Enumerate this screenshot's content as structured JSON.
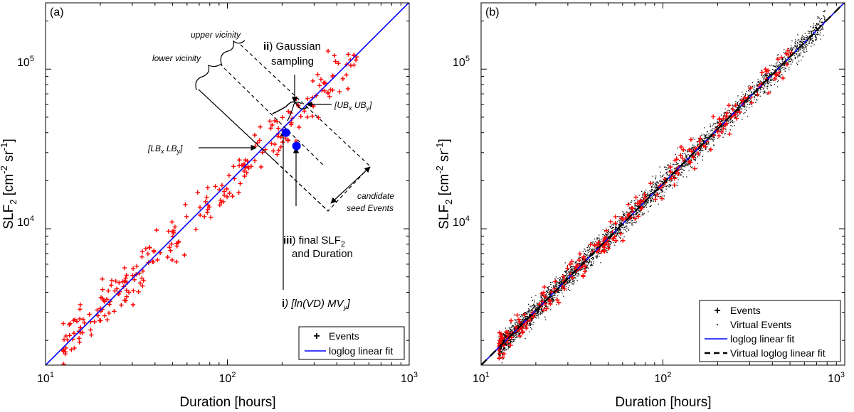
{
  "chart_data": [
    {
      "type": "scatter",
      "panel_label": "(a)",
      "xlabel": "Duration [hours]",
      "ylabel_parts": {
        "pre": "SLF",
        "sub": "2",
        "mid": " [cm",
        "sup1": "-2",
        "mid2": " sr",
        "sup2": "-1",
        "post": "]"
      },
      "xscale": "log",
      "yscale": "log",
      "xlim": [
        10,
        1000
      ],
      "ylim": [
        1400,
        260000
      ],
      "xticks": [
        {
          "base": "10",
          "exp": "1",
          "value": 10
        },
        {
          "base": "10",
          "exp": "2",
          "value": 100
        },
        {
          "base": "10",
          "exp": "3",
          "value": 1000
        }
      ],
      "yticks": [
        {
          "base": "10",
          "exp": "4",
          "value": 10000
        },
        {
          "base": "10",
          "exp": "5",
          "value": 100000
        }
      ],
      "grid": false,
      "legend": {
        "position": "bottom-right",
        "entries": [
          {
            "label": "Events",
            "marker": "plus",
            "color": "#ff0000"
          },
          {
            "label": "loglog linear fit",
            "marker": "line",
            "color": "#0000ff"
          }
        ]
      },
      "fit": {
        "name": "loglog linear fit",
        "x": [
          10,
          1000
        ],
        "y": [
          1400,
          262000
        ],
        "color": "#0000ff"
      },
      "events": {
        "name": "Events",
        "color": "#ff0000",
        "n": 260,
        "x_range": [
          12.5,
          520
        ],
        "scatter_sigma_decades": 0.07
      },
      "annotations": {
        "upper_vicinity": "upper vicinity",
        "lower_vicinity": "lower vicinity",
        "gaussian_num": "ii",
        "gaussian_line1": ") Gaussian",
        "gaussian_line2": "sampling",
        "ub": {
          "open": "[UB",
          "sub1": "x",
          "mid": " UB",
          "sub2": "y",
          "close": "]"
        },
        "lb": {
          "open": "[LB",
          "sub1": "x",
          "mid": " LB",
          "sub2": "y",
          "close": "]"
        },
        "candidate_line1": "candidate",
        "candidate_line2": "seed Events",
        "final_num": "iii",
        "final_line1_pre": ") final SLF",
        "final_line1_sub": "2",
        "final_line2": "and Duration",
        "step1_num": "i",
        "step1_text": ") [ln(VD) MV",
        "step1_sub": "y",
        "step1_close": "]",
        "points": [
          {
            "name": "seed-point",
            "x": 210,
            "y": 40000,
            "color": "#0000ff"
          },
          {
            "name": "final-point",
            "x": 240,
            "y": 33000,
            "color": "#0000ff"
          }
        ]
      }
    },
    {
      "type": "scatter",
      "panel_label": "(b)",
      "xlabel": "Duration [hours]",
      "ylabel_parts": {
        "pre": "SLF",
        "sub": "2",
        "mid": " [cm",
        "sup1": "-2",
        "mid2": " sr",
        "sup2": "-1",
        "post": "]"
      },
      "xscale": "log",
      "yscale": "log",
      "xlim": [
        10,
        1000
      ],
      "ylim": [
        1400,
        260000
      ],
      "xticks": [
        {
          "base": "10",
          "exp": "1",
          "value": 10
        },
        {
          "base": "10",
          "exp": "2",
          "value": 100
        },
        {
          "base": "10",
          "exp": "3",
          "value": 1000
        }
      ],
      "yticks": [
        {
          "base": "10",
          "exp": "4",
          "value": 10000
        },
        {
          "base": "10",
          "exp": "5",
          "value": 100000
        }
      ],
      "grid": false,
      "legend": {
        "position": "bottom-right",
        "entries": [
          {
            "label": "Events",
            "marker": "plus",
            "color": "#ff0000"
          },
          {
            "label": "Virtual Events",
            "marker": "dot",
            "color": "#000000"
          },
          {
            "label": "loglog linear fit",
            "marker": "line",
            "color": "#0000ff"
          },
          {
            "label": "Virtual loglog linear fit",
            "marker": "dashed-line",
            "color": "#000000"
          }
        ]
      },
      "fit": {
        "name": "loglog linear fit",
        "x": [
          10,
          1000
        ],
        "y": [
          1400,
          262000
        ],
        "color": "#0000ff"
      },
      "virtual_fit": {
        "name": "Virtual loglog linear fit",
        "x": [
          10,
          1000
        ],
        "y": [
          1400,
          262000
        ],
        "color": "#000000"
      },
      "virtual_events": {
        "name": "Virtual Events",
        "color": "#000000",
        "n": 3800,
        "x_range": [
          12.5,
          780
        ],
        "scatter_sigma_decades": 0.035
      },
      "events": {
        "name": "Events",
        "color": "#ff0000",
        "n": 260,
        "x_range": [
          12.5,
          520
        ],
        "scatter_sigma_decades": 0.045
      }
    }
  ]
}
